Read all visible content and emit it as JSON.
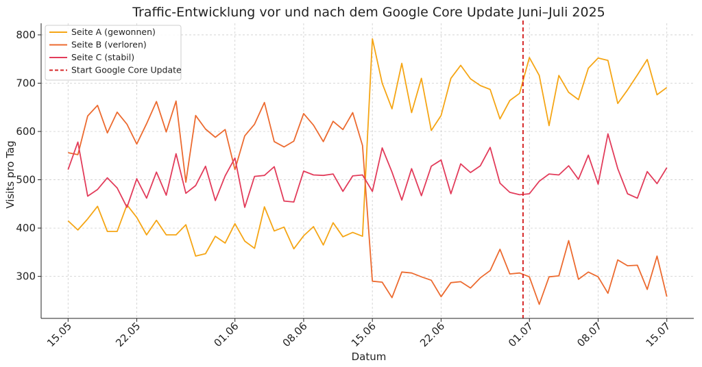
{
  "chart_data": {
    "type": "line",
    "title": "Traffic-Entwicklung vor und nach dem Google Core Update Juni–Juli 2025",
    "xlabel": "Datum",
    "ylabel": "Visits pro Tag",
    "x": [
      "15.05",
      "16.05",
      "17.05",
      "18.05",
      "19.05",
      "20.05",
      "21.05",
      "22.05",
      "23.05",
      "24.05",
      "25.05",
      "26.05",
      "27.05",
      "28.05",
      "29.05",
      "30.05",
      "31.05",
      "01.06",
      "02.06",
      "03.06",
      "04.06",
      "05.06",
      "06.06",
      "07.06",
      "08.06",
      "09.06",
      "10.06",
      "11.06",
      "12.06",
      "13.06",
      "14.06",
      "15.06",
      "16.06",
      "17.06",
      "18.06",
      "19.06",
      "20.06",
      "21.06",
      "22.06",
      "23.06",
      "24.06",
      "25.06",
      "26.06",
      "27.06",
      "28.06",
      "29.06",
      "30.06",
      "01.07",
      "02.07",
      "03.07",
      "04.07",
      "05.07",
      "06.07",
      "07.07",
      "08.07",
      "09.07",
      "10.07",
      "11.07",
      "12.07",
      "13.07",
      "14.07",
      "15.07"
    ],
    "x_ticks": [
      "15.05",
      "22.05",
      "01.06",
      "08.06",
      "15.06",
      "22.06",
      "01.07",
      "08.07",
      "15.07"
    ],
    "ylim": [
      213,
      824
    ],
    "y_ticks": [
      300,
      400,
      500,
      600,
      700,
      800
    ],
    "grid": true,
    "legend_position": "top-left",
    "series": [
      {
        "name": "Seite A (gewonnen)",
        "color": "#f5a514",
        "values": [
          415,
          396,
          419,
          445,
          393,
          393,
          448,
          422,
          386,
          416,
          386,
          386,
          407,
          342,
          347,
          383,
          369,
          409,
          373,
          358,
          444,
          394,
          402,
          357,
          384,
          403,
          365,
          411,
          382,
          391,
          383,
          792,
          700,
          647,
          741,
          639,
          710,
          602,
          633,
          710,
          737,
          709,
          695,
          687,
          626,
          664,
          679,
          753,
          716,
          612,
          716,
          681,
          666,
          731,
          752,
          747,
          658,
          686,
          717,
          749,
          676,
          691
        ]
      },
      {
        "name": "Seite B (verloren)",
        "color": "#ec6a2f",
        "values": [
          556,
          552,
          632,
          654,
          597,
          640,
          615,
          574,
          616,
          662,
          599,
          663,
          495,
          633,
          605,
          588,
          604,
          521,
          591,
          615,
          660,
          579,
          568,
          580,
          637,
          613,
          579,
          621,
          604,
          639,
          571,
          290,
          288,
          256,
          309,
          307,
          299,
          292,
          258,
          287,
          289,
          276,
          297,
          312,
          356,
          305,
          307,
          299,
          242,
          299,
          301,
          374,
          294,
          309,
          299,
          265,
          334,
          322,
          323,
          273,
          342,
          258
        ]
      },
      {
        "name": "Seite C (stabil)",
        "color": "#e23b5a",
        "values": [
          521,
          578,
          466,
          480,
          504,
          483,
          443,
          502,
          462,
          516,
          468,
          554,
          472,
          488,
          528,
          457,
          508,
          545,
          443,
          507,
          509,
          527,
          456,
          454,
          518,
          510,
          509,
          512,
          476,
          508,
          510,
          476,
          566,
          516,
          458,
          523,
          467,
          528,
          541,
          471,
          533,
          515,
          529,
          567,
          493,
          474,
          469,
          471,
          497,
          512,
          510,
          529,
          501,
          551,
          491,
          595,
          523,
          471,
          462,
          517,
          492,
          525
        ]
      }
    ],
    "vline": {
      "x": "30.06",
      "label": "Start Google Core Update",
      "color": "#d62728",
      "style": "dashed"
    }
  }
}
